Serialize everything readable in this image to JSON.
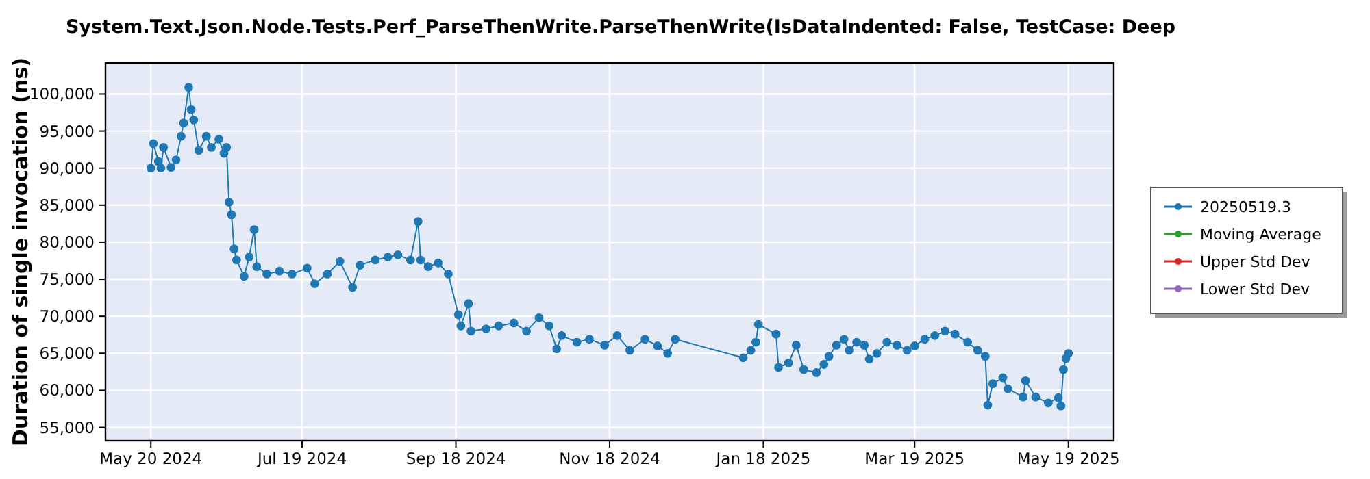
{
  "chart_data": {
    "type": "line",
    "title": "System.Text.Json.Node.Tests.Perf_ParseThenWrite.ParseThenWrite(IsDataIndented: False, TestCase: Deep",
    "ylabel": "Duration of single invocation (ns)",
    "xlim": [
      "2024-05-02",
      "2025-06-06"
    ],
    "xticks": [
      {
        "value": "2024-05-20",
        "label": "May 20 2024"
      },
      {
        "value": "2024-07-19",
        "label": "Jul 19 2024"
      },
      {
        "value": "2024-09-18",
        "label": "Sep 18 2024"
      },
      {
        "value": "2024-11-18",
        "label": "Nov 18 2024"
      },
      {
        "value": "2025-01-18",
        "label": "Jan 18 2025"
      },
      {
        "value": "2025-03-19",
        "label": "Mar 19 2025"
      },
      {
        "value": "2025-05-19",
        "label": "May 19 2025"
      }
    ],
    "ylim": [
      53200,
      104200
    ],
    "yticks": [
      {
        "value": 55000,
        "label": "55,000"
      },
      {
        "value": 60000,
        "label": "60,000"
      },
      {
        "value": 65000,
        "label": "65,000"
      },
      {
        "value": 70000,
        "label": "70,000"
      },
      {
        "value": 75000,
        "label": "75,000"
      },
      {
        "value": 80000,
        "label": "80,000"
      },
      {
        "value": 85000,
        "label": "85,000"
      },
      {
        "value": 90000,
        "label": "90,000"
      },
      {
        "value": 95000,
        "label": "95,000"
      },
      {
        "value": 100000,
        "label": "100,000"
      }
    ],
    "grid": true,
    "legend": "right",
    "marker": "circle",
    "line_style": "solid",
    "series": [
      {
        "name": "20250519.3",
        "color": "#1f77b4",
        "x": [
          "2024-05-20",
          "2024-05-21",
          "2024-05-23",
          "2024-05-24",
          "2024-05-25",
          "2024-05-28",
          "2024-05-30",
          "2024-06-01",
          "2024-06-02",
          "2024-06-04",
          "2024-06-05",
          "2024-06-06",
          "2024-06-08",
          "2024-06-11",
          "2024-06-13",
          "2024-06-16",
          "2024-06-18",
          "2024-06-19",
          "2024-06-20",
          "2024-06-21",
          "2024-06-22",
          "2024-06-23",
          "2024-06-26",
          "2024-06-28",
          "2024-06-30",
          "2024-07-01",
          "2024-07-05",
          "2024-07-10",
          "2024-07-15",
          "2024-07-21",
          "2024-07-24",
          "2024-07-29",
          "2024-08-03",
          "2024-08-08",
          "2024-08-11",
          "2024-08-17",
          "2024-08-22",
          "2024-08-26",
          "2024-08-31",
          "2024-09-03",
          "2024-09-04",
          "2024-09-07",
          "2024-09-11",
          "2024-09-15",
          "2024-09-19",
          "2024-09-20",
          "2024-09-23",
          "2024-09-24",
          "2024-09-30",
          "2024-10-05",
          "2024-10-11",
          "2024-10-16",
          "2024-10-21",
          "2024-10-25",
          "2024-10-28",
          "2024-10-30",
          "2024-11-05",
          "2024-11-10",
          "2024-11-16",
          "2024-11-21",
          "2024-11-26",
          "2024-12-02",
          "2024-12-07",
          "2024-12-11",
          "2024-12-14",
          "2025-01-10",
          "2025-01-13",
          "2025-01-15",
          "2025-01-16",
          "2025-01-23",
          "2025-01-24",
          "2025-01-28",
          "2025-01-31",
          "2025-02-03",
          "2025-02-08",
          "2025-02-11",
          "2025-02-13",
          "2025-02-16",
          "2025-02-19",
          "2025-02-21",
          "2025-02-24",
          "2025-02-27",
          "2025-03-01",
          "2025-03-04",
          "2025-03-08",
          "2025-03-12",
          "2025-03-16",
          "2025-03-19",
          "2025-03-23",
          "2025-03-27",
          "2025-03-31",
          "2025-04-04",
          "2025-04-09",
          "2025-04-13",
          "2025-04-16",
          "2025-04-17",
          "2025-04-19",
          "2025-04-23",
          "2025-04-25",
          "2025-05-01",
          "2025-05-02",
          "2025-05-06",
          "2025-05-11",
          "2025-05-15",
          "2025-05-16",
          "2025-05-17",
          "2025-05-18",
          "2025-05-19"
        ],
        "values": [
          90000,
          93300,
          90900,
          90000,
          92800,
          90100,
          91100,
          94300,
          96100,
          100900,
          97900,
          96500,
          92400,
          94300,
          92800,
          93900,
          92000,
          92800,
          85400,
          83700,
          79100,
          77600,
          75400,
          78000,
          81700,
          76700,
          75700,
          76100,
          75700,
          76500,
          74400,
          75700,
          77400,
          73900,
          76900,
          77600,
          78000,
          78300,
          77600,
          82800,
          77600,
          76700,
          77200,
          75700,
          70200,
          68700,
          71700,
          68000,
          68300,
          68700,
          69100,
          68000,
          69800,
          68700,
          65600,
          67400,
          66500,
          66900,
          66100,
          67400,
          65400,
          66900,
          66000,
          65000,
          66900,
          64400,
          65400,
          66500,
          68900,
          67600,
          63100,
          63700,
          66100,
          62800,
          62400,
          63500,
          64600,
          66100,
          66900,
          65400,
          66500,
          66100,
          64200,
          65000,
          66500,
          66100,
          65400,
          66000,
          66900,
          67400,
          68000,
          67600,
          66500,
          65400,
          64600,
          58000,
          60900,
          61700,
          60200,
          59100,
          61300,
          59100,
          58300,
          59000,
          57900,
          62800,
          64300,
          65000
        ]
      },
      {
        "name": "Moving Average",
        "color": "#2ca02c"
      },
      {
        "name": "Upper Std Dev",
        "color": "#d62728"
      },
      {
        "name": "Lower Std Dev",
        "color": "#9467bd"
      }
    ]
  }
}
